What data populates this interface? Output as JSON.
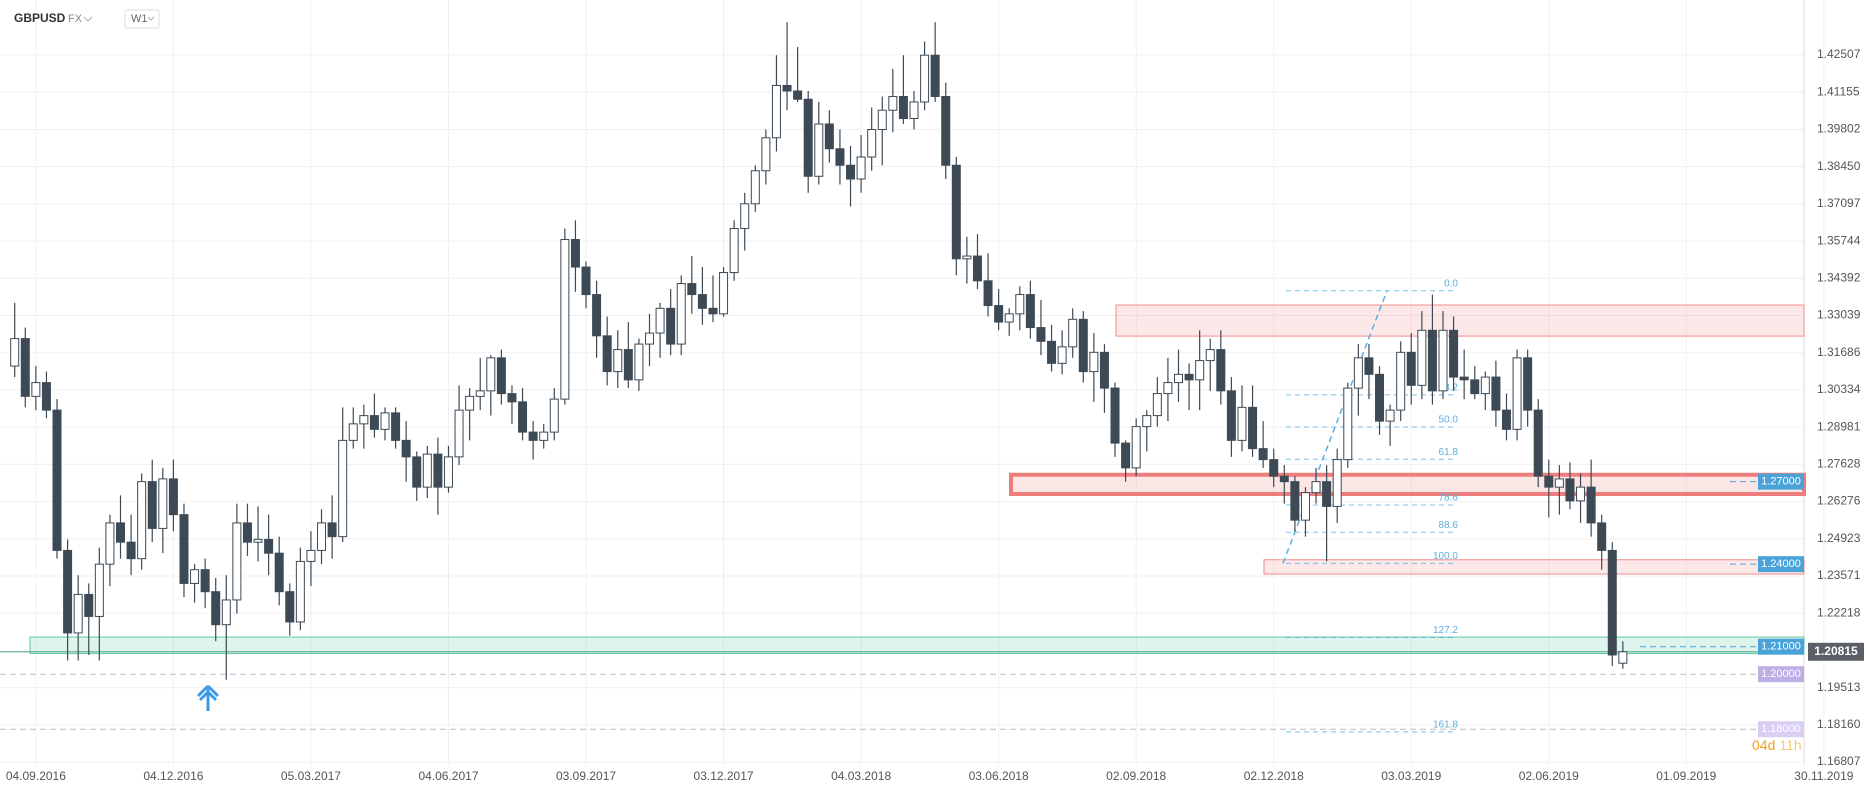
{
  "header": {
    "symbol": "GBPUSD",
    "market": "FX",
    "interval": "W1"
  },
  "chart_data": {
    "type": "candlestick",
    "categories": [
      null,
      null,
      "04.09.2016",
      null,
      null,
      null,
      null,
      null,
      null,
      null,
      null,
      null,
      null,
      null,
      null,
      "04.12.2016",
      null,
      null,
      null,
      null,
      null,
      null,
      null,
      null,
      null,
      null,
      null,
      null,
      "05.03.2017",
      null,
      null,
      null,
      null,
      null,
      null,
      null,
      null,
      null,
      null,
      null,
      null,
      "04.06.2017",
      null,
      null,
      null,
      null,
      null,
      null,
      null,
      null,
      null,
      null,
      null,
      null,
      "03.09.2017",
      null,
      null,
      null,
      null,
      null,
      null,
      null,
      null,
      null,
      null,
      null,
      null,
      "03.12.2017",
      null,
      null,
      null,
      null,
      null,
      null,
      null,
      null,
      null,
      null,
      null,
      null,
      "04.03.2018",
      null,
      null,
      null,
      null,
      null,
      null,
      null,
      null,
      null,
      null,
      null,
      null,
      "03.06.2018",
      null,
      null,
      null,
      null,
      null,
      null,
      null,
      null,
      null,
      null,
      null,
      null,
      "02.09.2018",
      null,
      null,
      null,
      null,
      null,
      null,
      null,
      null,
      null,
      null,
      null,
      null,
      "02.12.2018",
      null,
      null,
      null,
      null,
      null,
      null,
      null,
      null,
      null,
      null,
      null,
      null,
      "03.03.2019",
      null,
      null,
      null,
      null,
      null,
      null,
      null,
      null,
      null,
      null,
      null,
      null,
      "02.06.2019",
      null,
      null,
      null,
      null,
      null,
      null,
      null,
      null,
      null,
      null,
      null,
      null,
      "01.09.2019",
      null,
      null,
      null,
      null,
      null,
      null,
      null,
      null,
      null,
      null,
      null,
      null,
      "30.11.2019"
    ],
    "values": [
      [
        1.312,
        1.335,
        1.308,
        1.322
      ],
      [
        1.322,
        1.326,
        1.297,
        1.301
      ],
      [
        1.301,
        1.312,
        1.296,
        1.306
      ],
      [
        1.306,
        1.31,
        1.293,
        1.296
      ],
      [
        1.296,
        1.3,
        1.242,
        1.245
      ],
      [
        1.245,
        1.249,
        1.205,
        1.215
      ],
      [
        1.215,
        1.236,
        1.205,
        1.229
      ],
      [
        1.229,
        1.233,
        1.207,
        1.221
      ],
      [
        1.221,
        1.246,
        1.205,
        1.24
      ],
      [
        1.24,
        1.258,
        1.232,
        1.255
      ],
      [
        1.255,
        1.265,
        1.242,
        1.248
      ],
      [
        1.248,
        1.258,
        1.236,
        1.242
      ],
      [
        1.242,
        1.273,
        1.238,
        1.27
      ],
      [
        1.27,
        1.278,
        1.248,
        1.253
      ],
      [
        1.253,
        1.275,
        1.244,
        1.271
      ],
      [
        1.271,
        1.278,
        1.252,
        1.258
      ],
      [
        1.258,
        1.262,
        1.228,
        1.233
      ],
      [
        1.233,
        1.24,
        1.226,
        1.238
      ],
      [
        1.238,
        1.242,
        1.224,
        1.23
      ],
      [
        1.23,
        1.235,
        1.212,
        1.218
      ],
      [
        1.218,
        1.236,
        1.198,
        1.227
      ],
      [
        1.227,
        1.262,
        1.222,
        1.255
      ],
      [
        1.255,
        1.262,
        1.243,
        1.248
      ],
      [
        1.248,
        1.261,
        1.241,
        1.249
      ],
      [
        1.249,
        1.258,
        1.236,
        1.244
      ],
      [
        1.244,
        1.25,
        1.225,
        1.23
      ],
      [
        1.23,
        1.233,
        1.214,
        1.219
      ],
      [
        1.219,
        1.246,
        1.216,
        1.241
      ],
      [
        1.241,
        1.252,
        1.232,
        1.245
      ],
      [
        1.245,
        1.26,
        1.24,
        1.255
      ],
      [
        1.255,
        1.265,
        1.242,
        1.25
      ],
      [
        1.25,
        1.297,
        1.248,
        1.285
      ],
      [
        1.285,
        1.297,
        1.282,
        1.291
      ],
      [
        1.291,
        1.298,
        1.282,
        1.294
      ],
      [
        1.294,
        1.302,
        1.286,
        1.289
      ],
      [
        1.289,
        1.297,
        1.285,
        1.295
      ],
      [
        1.295,
        1.297,
        1.282,
        1.285
      ],
      [
        1.285,
        1.292,
        1.27,
        1.279
      ],
      [
        1.279,
        1.281,
        1.263,
        1.268
      ],
      [
        1.268,
        1.283,
        1.264,
        1.28
      ],
      [
        1.28,
        1.286,
        1.258,
        1.268
      ],
      [
        1.268,
        1.283,
        1.266,
        1.279
      ],
      [
        1.279,
        1.305,
        1.276,
        1.296
      ],
      [
        1.296,
        1.304,
        1.285,
        1.301
      ],
      [
        1.301,
        1.315,
        1.296,
        1.303
      ],
      [
        1.303,
        1.316,
        1.294,
        1.315
      ],
      [
        1.315,
        1.318,
        1.298,
        1.302
      ],
      [
        1.302,
        1.305,
        1.291,
        1.299
      ],
      [
        1.299,
        1.304,
        1.285,
        1.288
      ],
      [
        1.288,
        1.292,
        1.278,
        1.285
      ],
      [
        1.285,
        1.291,
        1.282,
        1.288
      ],
      [
        1.288,
        1.304,
        1.285,
        1.3
      ],
      [
        1.3,
        1.362,
        1.298,
        1.358
      ],
      [
        1.358,
        1.365,
        1.339,
        1.348
      ],
      [
        1.348,
        1.35,
        1.333,
        1.338
      ],
      [
        1.338,
        1.343,
        1.315,
        1.323
      ],
      [
        1.323,
        1.33,
        1.305,
        1.31
      ],
      [
        1.31,
        1.325,
        1.304,
        1.318
      ],
      [
        1.318,
        1.328,
        1.304,
        1.307
      ],
      [
        1.307,
        1.322,
        1.303,
        1.32
      ],
      [
        1.32,
        1.331,
        1.312,
        1.324
      ],
      [
        1.324,
        1.335,
        1.315,
        1.333
      ],
      [
        1.333,
        1.34,
        1.316,
        1.32
      ],
      [
        1.32,
        1.345,
        1.316,
        1.342
      ],
      [
        1.342,
        1.352,
        1.331,
        1.338
      ],
      [
        1.338,
        1.348,
        1.327,
        1.333
      ],
      [
        1.333,
        1.345,
        1.328,
        1.331
      ],
      [
        1.331,
        1.348,
        1.33,
        1.346
      ],
      [
        1.346,
        1.365,
        1.343,
        1.362
      ],
      [
        1.362,
        1.375,
        1.354,
        1.371
      ],
      [
        1.371,
        1.385,
        1.368,
        1.383
      ],
      [
        1.383,
        1.398,
        1.378,
        1.395
      ],
      [
        1.395,
        1.425,
        1.39,
        1.414
      ],
      [
        1.414,
        1.437,
        1.405,
        1.412
      ],
      [
        1.412,
        1.428,
        1.408,
        1.409
      ],
      [
        1.409,
        1.412,
        1.375,
        1.381
      ],
      [
        1.381,
        1.408,
        1.378,
        1.4
      ],
      [
        1.4,
        1.405,
        1.386,
        1.391
      ],
      [
        1.391,
        1.398,
        1.378,
        1.385
      ],
      [
        1.385,
        1.392,
        1.37,
        1.38
      ],
      [
        1.38,
        1.396,
        1.375,
        1.388
      ],
      [
        1.388,
        1.406,
        1.383,
        1.398
      ],
      [
        1.398,
        1.41,
        1.385,
        1.405
      ],
      [
        1.405,
        1.42,
        1.397,
        1.41
      ],
      [
        1.41,
        1.425,
        1.4,
        1.402
      ],
      [
        1.402,
        1.412,
        1.398,
        1.408
      ],
      [
        1.408,
        1.43,
        1.405,
        1.425
      ],
      [
        1.425,
        1.437,
        1.408,
        1.41
      ],
      [
        1.41,
        1.415,
        1.38,
        1.385
      ],
      [
        1.385,
        1.388,
        1.345,
        1.351
      ],
      [
        1.351,
        1.359,
        1.342,
        1.352
      ],
      [
        1.352,
        1.36,
        1.34,
        1.343
      ],
      [
        1.343,
        1.353,
        1.33,
        1.334
      ],
      [
        1.334,
        1.34,
        1.325,
        1.328
      ],
      [
        1.328,
        1.333,
        1.323,
        1.331
      ],
      [
        1.331,
        1.341,
        1.325,
        1.338
      ],
      [
        1.338,
        1.343,
        1.322,
        1.326
      ],
      [
        1.326,
        1.336,
        1.316,
        1.321
      ],
      [
        1.321,
        1.327,
        1.31,
        1.313
      ],
      [
        1.313,
        1.325,
        1.309,
        1.319
      ],
      [
        1.319,
        1.333,
        1.315,
        1.329
      ],
      [
        1.329,
        1.332,
        1.306,
        1.31
      ],
      [
        1.31,
        1.324,
        1.299,
        1.317
      ],
      [
        1.317,
        1.32,
        1.295,
        1.304
      ],
      [
        1.304,
        1.306,
        1.279,
        1.284
      ],
      [
        1.284,
        1.285,
        1.27,
        1.275
      ],
      [
        1.275,
        1.293,
        1.272,
        1.29
      ],
      [
        1.29,
        1.296,
        1.281,
        1.294
      ],
      [
        1.294,
        1.308,
        1.29,
        1.302
      ],
      [
        1.302,
        1.315,
        1.292,
        1.306
      ],
      [
        1.306,
        1.318,
        1.299,
        1.309
      ],
      [
        1.309,
        1.313,
        1.296,
        1.307
      ],
      [
        1.307,
        1.325,
        1.296,
        1.314
      ],
      [
        1.314,
        1.322,
        1.303,
        1.318
      ],
      [
        1.318,
        1.325,
        1.298,
        1.303
      ],
      [
        1.303,
        1.308,
        1.279,
        1.285
      ],
      [
        1.285,
        1.305,
        1.281,
        1.297
      ],
      [
        1.297,
        1.305,
        1.279,
        1.282
      ],
      [
        1.282,
        1.292,
        1.275,
        1.278
      ],
      [
        1.278,
        1.282,
        1.268,
        1.272
      ],
      [
        1.272,
        1.276,
        1.262,
        1.27
      ],
      [
        1.27,
        1.272,
        1.252,
        1.256
      ],
      [
        1.256,
        1.268,
        1.25,
        1.266
      ],
      [
        1.266,
        1.275,
        1.262,
        1.27
      ],
      [
        1.27,
        1.276,
        1.241,
        1.261
      ],
      [
        1.261,
        1.282,
        1.255,
        1.278
      ],
      [
        1.278,
        1.306,
        1.275,
        1.304
      ],
      [
        1.304,
        1.32,
        1.294,
        1.315
      ],
      [
        1.315,
        1.32,
        1.3,
        1.309
      ],
      [
        1.309,
        1.312,
        1.287,
        1.292
      ],
      [
        1.292,
        1.298,
        1.283,
        1.296
      ],
      [
        1.296,
        1.321,
        1.292,
        1.317
      ],
      [
        1.317,
        1.324,
        1.298,
        1.305
      ],
      [
        1.305,
        1.332,
        1.3,
        1.325
      ],
      [
        1.325,
        1.338,
        1.298,
        1.303
      ],
      [
        1.303,
        1.332,
        1.3,
        1.325
      ],
      [
        1.325,
        1.33,
        1.303,
        1.308
      ],
      [
        1.308,
        1.318,
        1.3,
        1.307
      ],
      [
        1.307,
        1.312,
        1.3,
        1.302
      ],
      [
        1.302,
        1.31,
        1.296,
        1.308
      ],
      [
        1.308,
        1.314,
        1.29,
        1.296
      ],
      [
        1.296,
        1.302,
        1.285,
        1.289
      ],
      [
        1.289,
        1.318,
        1.285,
        1.315
      ],
      [
        1.315,
        1.318,
        1.29,
        1.296
      ],
      [
        1.296,
        1.3,
        1.268,
        1.272
      ],
      [
        1.272,
        1.278,
        1.257,
        1.268
      ],
      [
        1.268,
        1.276,
        1.258,
        1.271
      ],
      [
        1.271,
        1.277,
        1.26,
        1.263
      ],
      [
        1.263,
        1.273,
        1.255,
        1.268
      ],
      [
        1.268,
        1.278,
        1.25,
        1.255
      ],
      [
        1.255,
        1.258,
        1.238,
        1.245
      ],
      [
        1.245,
        1.248,
        1.203,
        1.207
      ],
      [
        1.204,
        1.212,
        1.202,
        1.20815
      ],
      null,
      null,
      null,
      null,
      null,
      null,
      null,
      null,
      null,
      null,
      null,
      null,
      null,
      null,
      null,
      null,
      null,
      null,
      null
    ],
    "up_color": "#ffffff",
    "down_color": "#3d4a55",
    "line_color": "#3d4a55",
    "ylim": [
      1.167,
      1.4378
    ],
    "yticks": [
      1.42507,
      1.41155,
      1.39802,
      {
        "value": 1.3845,
        "label": "1.38450"
      },
      1.37097,
      1.35744,
      1.34392,
      1.33039,
      1.31686,
      1.30334,
      1.28981,
      1.27628,
      1.26276,
      1.24923,
      1.23571,
      1.22218,
      1.19513,
      {
        "value": 1.1816,
        "label": "1.18160"
      },
      1.16807
    ],
    "grid": true,
    "current_price": 1.20815,
    "price_levels": [
      {
        "value": 1.27,
        "label": "1.27000",
        "color": "#4aa3d8"
      },
      {
        "value": 1.24,
        "label": "1.24000",
        "color": "#4aa3d8"
      },
      {
        "value": 1.21,
        "label": "1.21000",
        "color": "#4aa3d8"
      },
      {
        "value": 1.2,
        "label": "1.20000",
        "color": "#bdaee6"
      },
      {
        "value": 1.18,
        "label": "1.18000",
        "color": "#d8cff2"
      }
    ],
    "zones": [
      {
        "from": 1.3229,
        "to": 1.3342,
        "color": "#f08c8c"
      },
      {
        "from": 1.2655,
        "to": 1.2725,
        "color": "#ee7d7d"
      },
      {
        "from": 1.2364,
        "to": 1.2416,
        "color": "#f08c8c"
      },
      {
        "from": 1.2075,
        "to": 1.2135,
        "color": "#5ccaa3"
      }
    ],
    "fibonacci": {
      "high": 1.3394,
      "low": 1.2403,
      "color": "#5ab0e0",
      "levels": [
        {
          "value": 0,
          "label": "0.0"
        },
        38.2,
        {
          "value": 50,
          "label": "50.0"
        },
        61.8,
        78.6,
        88.6,
        {
          "value": 100,
          "label": "100.0"
        },
        127.2,
        161.8
      ]
    },
    "timer_days": "04d",
    "timer_hours": "11h"
  }
}
